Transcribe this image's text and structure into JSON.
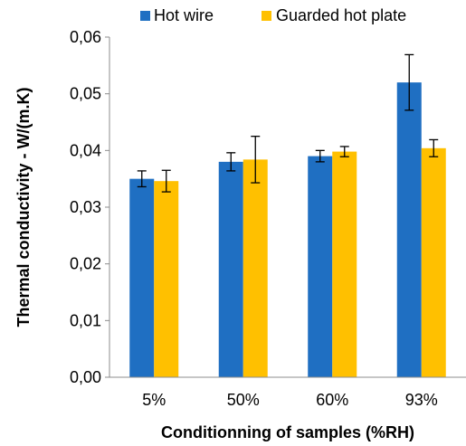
{
  "chart_data": {
    "type": "bar",
    "title": "",
    "xlabel": "Conditionning of samples (%RH)",
    "ylabel": "Thermal conductivity - W/(m.K)",
    "ylim": [
      0,
      0.06
    ],
    "y_ticks": [
      "0,00",
      "0,01",
      "0,02",
      "0,03",
      "0,04",
      "0,05",
      "0,06"
    ],
    "categories": [
      "5%",
      "50%",
      "60%",
      "93%"
    ],
    "grid": false,
    "legend_position": "top",
    "series": [
      {
        "name": "Hot wire",
        "color": "#1F6FC2",
        "values": [
          0.035,
          0.038,
          0.039,
          0.052
        ],
        "errors": [
          0.0014,
          0.0016,
          0.001,
          0.0049
        ]
      },
      {
        "name": "Guarded hot plate",
        "color": "#FFC000",
        "values": [
          0.0346,
          0.0384,
          0.0398,
          0.0404
        ],
        "errors": [
          0.0019,
          0.0041,
          0.0009,
          0.0015
        ]
      }
    ]
  }
}
